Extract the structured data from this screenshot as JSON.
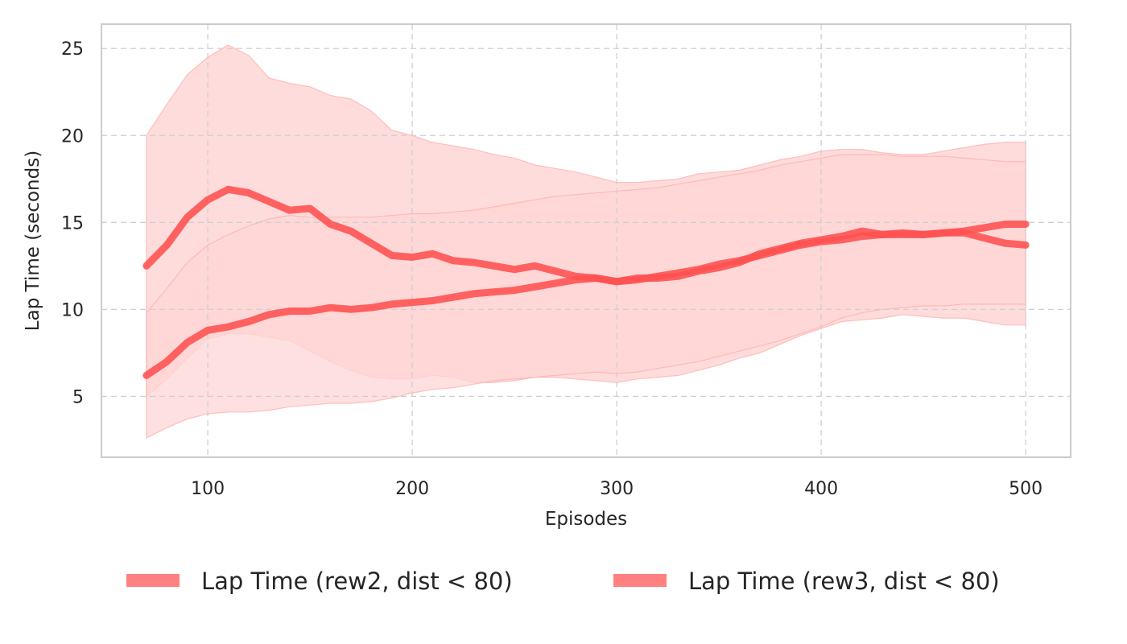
{
  "chart_data": {
    "type": "line",
    "title": "",
    "xlabel": "Episodes",
    "ylabel": "Lap Time (seconds)",
    "xlim": [
      48,
      522
    ],
    "ylim": [
      1.5,
      26.4
    ],
    "x_ticks": [
      100,
      200,
      300,
      400,
      500
    ],
    "y_ticks": [
      5,
      10,
      15,
      20,
      25
    ],
    "grid": true,
    "legend_position": "bottom-center",
    "colors": {
      "line": "#ff5050",
      "band_light": "#ffd6d6",
      "band_dark": "#ffb3b3",
      "legend_patch": "#ff8080",
      "spine": "#cccccc"
    },
    "series": [
      {
        "name": "Lap Time (rew2, dist < 80)",
        "x": [
          70,
          80,
          90,
          100,
          110,
          120,
          130,
          140,
          150,
          160,
          170,
          180,
          190,
          200,
          210,
          220,
          230,
          240,
          250,
          260,
          270,
          280,
          290,
          300,
          310,
          320,
          330,
          340,
          350,
          360,
          370,
          380,
          390,
          400,
          410,
          420,
          430,
          440,
          450,
          460,
          470,
          480,
          490,
          500
        ],
        "mean": [
          12.5,
          13.7,
          15.3,
          16.3,
          16.9,
          16.7,
          16.2,
          15.7,
          15.8,
          14.9,
          14.5,
          13.8,
          13.1,
          13.0,
          13.2,
          12.8,
          12.7,
          12.5,
          12.3,
          12.5,
          12.2,
          11.9,
          11.8,
          11.6,
          11.8,
          11.8,
          11.9,
          12.2,
          12.4,
          12.7,
          13.2,
          13.5,
          13.8,
          14.0,
          14.2,
          14.5,
          14.3,
          14.4,
          14.3,
          14.4,
          14.4,
          14.1,
          13.8,
          13.7
        ],
        "upper": [
          20.0,
          21.8,
          23.5,
          24.5,
          25.2,
          24.6,
          23.3,
          23.0,
          22.8,
          22.3,
          22.1,
          21.4,
          20.3,
          20.0,
          19.6,
          19.4,
          19.2,
          18.9,
          18.7,
          18.3,
          18.1,
          17.9,
          17.6,
          17.3,
          17.3,
          17.4,
          17.5,
          17.8,
          17.9,
          18.0,
          18.3,
          18.6,
          18.8,
          19.1,
          19.2,
          19.2,
          19.0,
          18.9,
          18.9,
          19.1,
          19.3,
          19.5,
          19.6,
          19.6
        ],
        "lower": [
          5.0,
          6.0,
          7.2,
          8.3,
          8.6,
          8.6,
          8.4,
          8.2,
          7.6,
          7.0,
          6.5,
          6.1,
          6.0,
          6.0,
          6.2,
          6.1,
          5.8,
          5.8,
          5.9,
          6.1,
          6.1,
          6.0,
          5.9,
          5.8,
          6.0,
          6.1,
          6.2,
          6.5,
          6.8,
          7.2,
          7.5,
          8.0,
          8.5,
          8.9,
          9.3,
          9.4,
          9.5,
          9.7,
          9.6,
          9.5,
          9.5,
          9.3,
          9.1,
          9.1
        ]
      },
      {
        "name": "Lap Time (rew3, dist < 80)",
        "x": [
          70,
          80,
          90,
          100,
          110,
          120,
          130,
          140,
          150,
          160,
          170,
          180,
          190,
          200,
          210,
          220,
          230,
          240,
          250,
          260,
          270,
          280,
          290,
          300,
          310,
          320,
          330,
          340,
          350,
          360,
          370,
          380,
          390,
          400,
          410,
          420,
          430,
          440,
          450,
          460,
          470,
          480,
          490,
          500
        ],
        "mean": [
          6.2,
          7.0,
          8.1,
          8.8,
          9.0,
          9.3,
          9.7,
          9.9,
          9.9,
          10.1,
          10.0,
          10.1,
          10.3,
          10.4,
          10.5,
          10.7,
          10.9,
          11.0,
          11.1,
          11.3,
          11.5,
          11.7,
          11.8,
          11.6,
          11.7,
          11.9,
          12.1,
          12.3,
          12.6,
          12.8,
          13.1,
          13.4,
          13.7,
          13.9,
          14.0,
          14.2,
          14.3,
          14.3,
          14.3,
          14.4,
          14.5,
          14.7,
          14.9,
          14.9
        ],
        "upper": [
          9.8,
          11.2,
          12.7,
          13.7,
          14.3,
          14.8,
          15.2,
          15.4,
          15.3,
          15.3,
          15.3,
          15.3,
          15.4,
          15.5,
          15.5,
          15.6,
          15.7,
          15.9,
          16.1,
          16.3,
          16.5,
          16.6,
          16.7,
          16.8,
          16.9,
          17.0,
          17.2,
          17.4,
          17.6,
          17.8,
          18.0,
          18.3,
          18.5,
          18.7,
          18.9,
          18.9,
          18.9,
          18.8,
          18.8,
          18.8,
          18.7,
          18.6,
          18.5,
          18.5
        ],
        "lower": [
          2.6,
          3.2,
          3.7,
          4.0,
          4.1,
          4.1,
          4.2,
          4.4,
          4.5,
          4.6,
          4.6,
          4.7,
          4.9,
          5.2,
          5.4,
          5.5,
          5.7,
          5.9,
          6.0,
          6.1,
          6.2,
          6.3,
          6.4,
          6.3,
          6.4,
          6.6,
          6.8,
          7.0,
          7.3,
          7.6,
          7.9,
          8.2,
          8.6,
          9.0,
          9.5,
          9.8,
          10.0,
          10.1,
          10.2,
          10.2,
          10.3,
          10.3,
          10.3,
          10.3
        ]
      }
    ]
  }
}
